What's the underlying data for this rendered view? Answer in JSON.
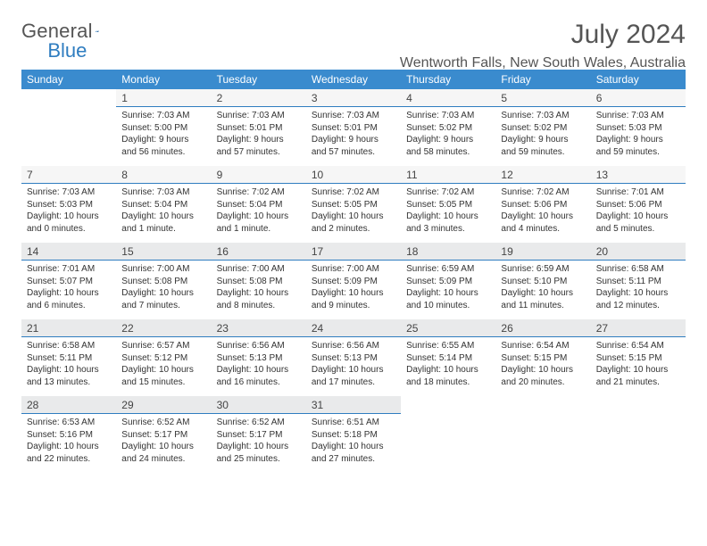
{
  "logo": {
    "text_a": "General",
    "text_b": "Blue"
  },
  "header": {
    "month_title": "July 2024",
    "location": "Wentworth Falls, New South Wales, Australia"
  },
  "colors": {
    "header_bg": "#3a8bce",
    "header_fg": "#ffffff",
    "rule": "#2f7dc0",
    "day_bg": "#f6f6f6",
    "day_bg_shade": "#e9eaeb",
    "text": "#333333"
  },
  "daysOfWeek": [
    "Sunday",
    "Monday",
    "Tuesday",
    "Wednesday",
    "Thursday",
    "Friday",
    "Saturday"
  ],
  "firstWeekdayIndex": 1,
  "daysInMonth": 31,
  "entries": {
    "1": {
      "sunrise": "7:03 AM",
      "sunset": "5:00 PM",
      "daylight": "9 hours and 56 minutes."
    },
    "2": {
      "sunrise": "7:03 AM",
      "sunset": "5:01 PM",
      "daylight": "9 hours and 57 minutes."
    },
    "3": {
      "sunrise": "7:03 AM",
      "sunset": "5:01 PM",
      "daylight": "9 hours and 57 minutes."
    },
    "4": {
      "sunrise": "7:03 AM",
      "sunset": "5:02 PM",
      "daylight": "9 hours and 58 minutes."
    },
    "5": {
      "sunrise": "7:03 AM",
      "sunset": "5:02 PM",
      "daylight": "9 hours and 59 minutes."
    },
    "6": {
      "sunrise": "7:03 AM",
      "sunset": "5:03 PM",
      "daylight": "9 hours and 59 minutes."
    },
    "7": {
      "sunrise": "7:03 AM",
      "sunset": "5:03 PM",
      "daylight": "10 hours and 0 minutes."
    },
    "8": {
      "sunrise": "7:03 AM",
      "sunset": "5:04 PM",
      "daylight": "10 hours and 1 minute."
    },
    "9": {
      "sunrise": "7:02 AM",
      "sunset": "5:04 PM",
      "daylight": "10 hours and 1 minute."
    },
    "10": {
      "sunrise": "7:02 AM",
      "sunset": "5:05 PM",
      "daylight": "10 hours and 2 minutes."
    },
    "11": {
      "sunrise": "7:02 AM",
      "sunset": "5:05 PM",
      "daylight": "10 hours and 3 minutes."
    },
    "12": {
      "sunrise": "7:02 AM",
      "sunset": "5:06 PM",
      "daylight": "10 hours and 4 minutes."
    },
    "13": {
      "sunrise": "7:01 AM",
      "sunset": "5:06 PM",
      "daylight": "10 hours and 5 minutes."
    },
    "14": {
      "sunrise": "7:01 AM",
      "sunset": "5:07 PM",
      "daylight": "10 hours and 6 minutes."
    },
    "15": {
      "sunrise": "7:00 AM",
      "sunset": "5:08 PM",
      "daylight": "10 hours and 7 minutes."
    },
    "16": {
      "sunrise": "7:00 AM",
      "sunset": "5:08 PM",
      "daylight": "10 hours and 8 minutes."
    },
    "17": {
      "sunrise": "7:00 AM",
      "sunset": "5:09 PM",
      "daylight": "10 hours and 9 minutes."
    },
    "18": {
      "sunrise": "6:59 AM",
      "sunset": "5:09 PM",
      "daylight": "10 hours and 10 minutes."
    },
    "19": {
      "sunrise": "6:59 AM",
      "sunset": "5:10 PM",
      "daylight": "10 hours and 11 minutes."
    },
    "20": {
      "sunrise": "6:58 AM",
      "sunset": "5:11 PM",
      "daylight": "10 hours and 12 minutes."
    },
    "21": {
      "sunrise": "6:58 AM",
      "sunset": "5:11 PM",
      "daylight": "10 hours and 13 minutes."
    },
    "22": {
      "sunrise": "6:57 AM",
      "sunset": "5:12 PM",
      "daylight": "10 hours and 15 minutes."
    },
    "23": {
      "sunrise": "6:56 AM",
      "sunset": "5:13 PM",
      "daylight": "10 hours and 16 minutes."
    },
    "24": {
      "sunrise": "6:56 AM",
      "sunset": "5:13 PM",
      "daylight": "10 hours and 17 minutes."
    },
    "25": {
      "sunrise": "6:55 AM",
      "sunset": "5:14 PM",
      "daylight": "10 hours and 18 minutes."
    },
    "26": {
      "sunrise": "6:54 AM",
      "sunset": "5:15 PM",
      "daylight": "10 hours and 20 minutes."
    },
    "27": {
      "sunrise": "6:54 AM",
      "sunset": "5:15 PM",
      "daylight": "10 hours and 21 minutes."
    },
    "28": {
      "sunrise": "6:53 AM",
      "sunset": "5:16 PM",
      "daylight": "10 hours and 22 minutes."
    },
    "29": {
      "sunrise": "6:52 AM",
      "sunset": "5:17 PM",
      "daylight": "10 hours and 24 minutes."
    },
    "30": {
      "sunrise": "6:52 AM",
      "sunset": "5:17 PM",
      "daylight": "10 hours and 25 minutes."
    },
    "31": {
      "sunrise": "6:51 AM",
      "sunset": "5:18 PM",
      "daylight": "10 hours and 27 minutes."
    }
  },
  "labels": {
    "sunrise_prefix": "Sunrise: ",
    "sunset_prefix": "Sunset: ",
    "daylight_prefix": "Daylight: "
  }
}
